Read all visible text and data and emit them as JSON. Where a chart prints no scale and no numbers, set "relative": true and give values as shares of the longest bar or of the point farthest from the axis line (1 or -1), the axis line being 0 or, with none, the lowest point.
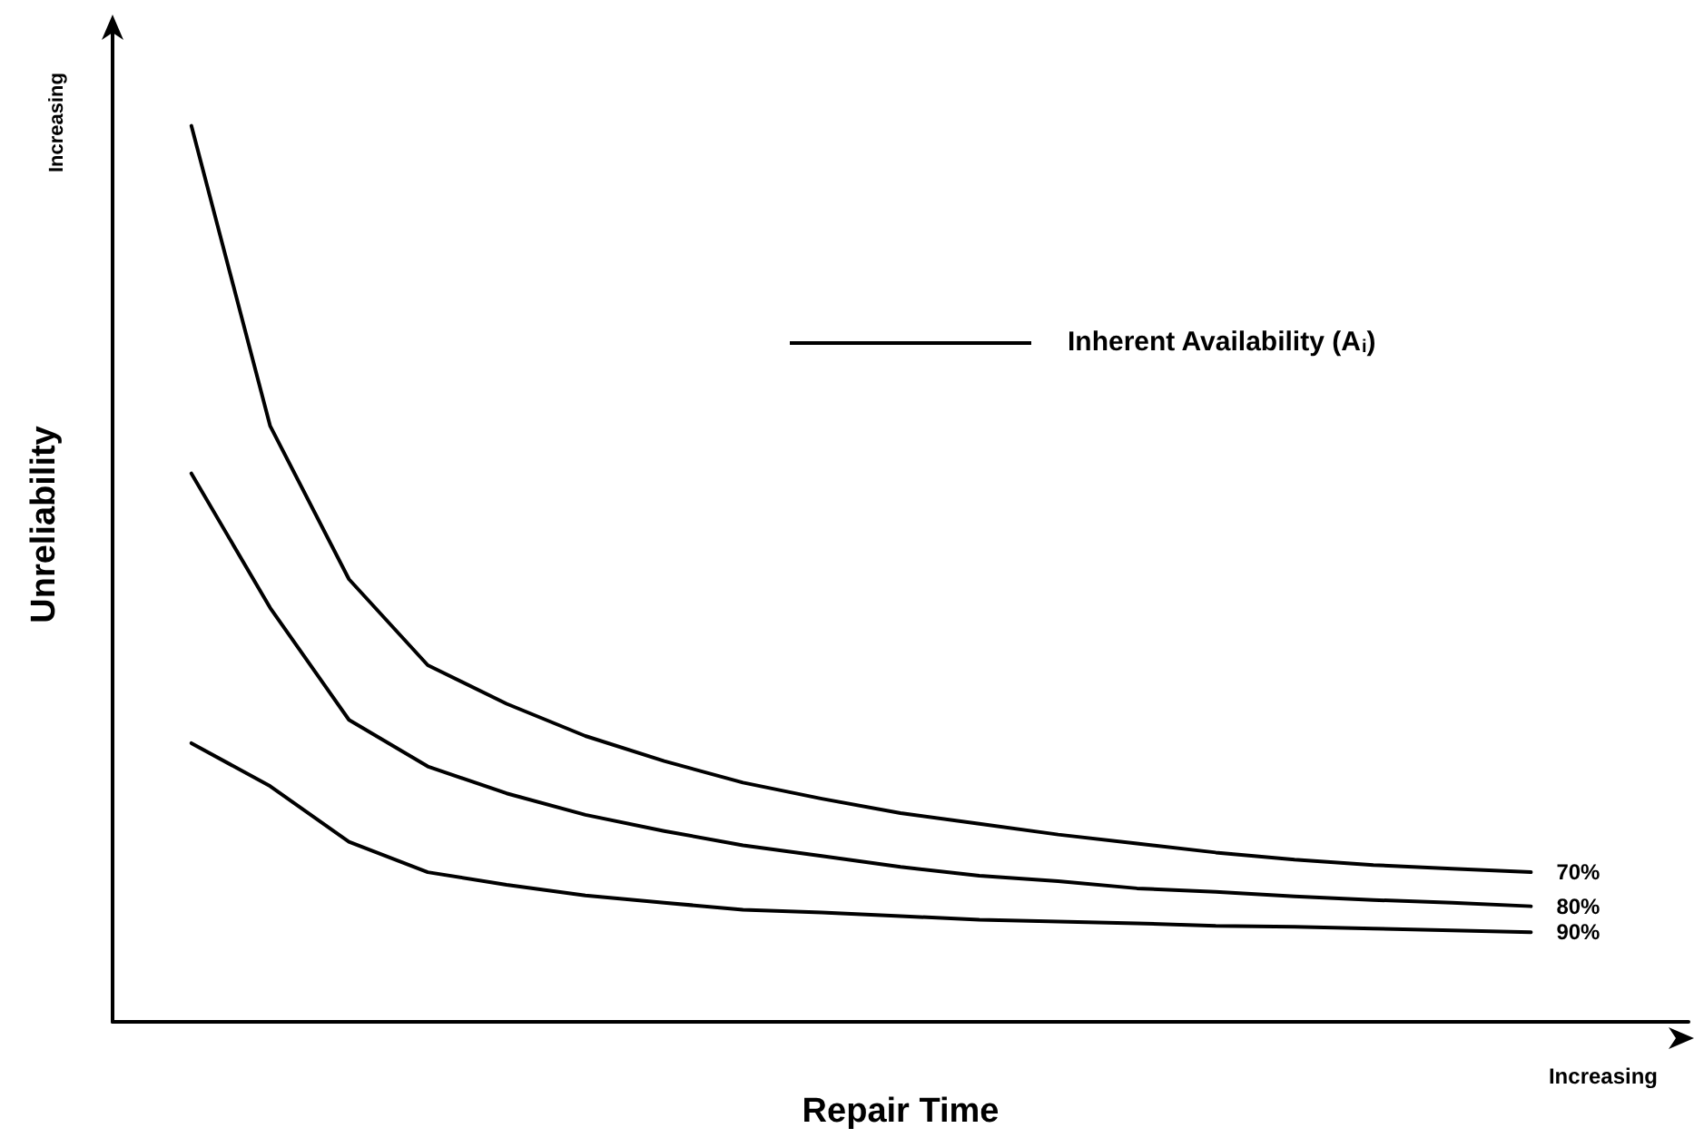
{
  "chart_data": {
    "type": "line",
    "relative": true,
    "xlabel": "Repair Time",
    "ylabel": "Unreliability",
    "legend_title": "Inherent Availability (A$_{i}$)",
    "annotations": [
      "Increasing",
      "Increasing"
    ],
    "categories": [
      null,
      null,
      null,
      null,
      null,
      null,
      null,
      null,
      null,
      null,
      null,
      null,
      null,
      null,
      null,
      null,
      null,
      null
    ],
    "grid": false,
    "legend": false,
    "marker": "none",
    "line_style": "solid",
    "series": [
      {
        "name": "70%",
        "color": "#000000",
        "values": [
          1,
          0.665,
          0.494,
          0.398,
          0.355,
          0.319,
          0.291,
          0.267,
          0.249,
          0.233,
          0.221,
          0.209,
          0.199,
          0.189,
          0.181,
          0.175,
          0.171,
          0.167
        ]
      },
      {
        "name": "80%",
        "color": "#000000",
        "values": [
          0.612,
          0.462,
          0.337,
          0.285,
          0.255,
          0.231,
          0.213,
          0.197,
          0.185,
          0.173,
          0.163,
          0.157,
          0.149,
          0.145,
          0.14,
          0.136,
          0.133,
          0.129
        ]
      },
      {
        "name": "90%",
        "color": "#000000",
        "values": [
          0.311,
          0.263,
          0.201,
          0.167,
          0.153,
          0.141,
          0.133,
          0.125,
          0.122,
          0.118,
          0.114,
          0.112,
          0.11,
          0.107,
          0.106,
          0.104,
          0.102,
          0.1
        ]
      }
    ]
  }
}
